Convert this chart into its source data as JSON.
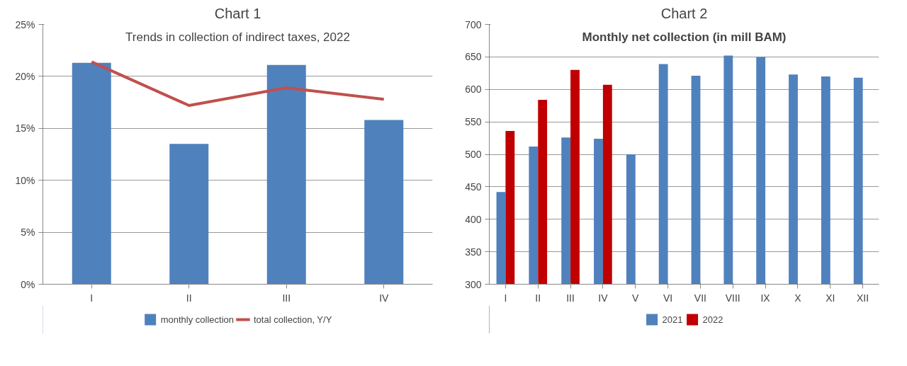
{
  "chart_data": [
    {
      "type": "bar",
      "title": "Chart 1",
      "subtitle": "Trends in collection of indirect taxes, 2022",
      "categories": [
        "I",
        "II",
        "III",
        "IV"
      ],
      "series": [
        {
          "name": "monthly collection",
          "type": "bar",
          "color": "#4f81bd",
          "values": [
            21.3,
            13.5,
            21.1,
            15.8
          ]
        },
        {
          "name": "total collection, Y/Y",
          "type": "line",
          "color": "#c0504d",
          "values": [
            21.4,
            17.2,
            18.9,
            17.8
          ]
        }
      ],
      "ylim": [
        0,
        25
      ],
      "yticks": [
        {
          "value": 0,
          "label": "0%"
        },
        {
          "value": 5,
          "label": "5%"
        },
        {
          "value": 10,
          "label": "10%"
        },
        {
          "value": 15,
          "label": "15%"
        },
        {
          "value": 20,
          "label": "20%"
        },
        {
          "value": 25,
          "label": "25%"
        }
      ],
      "grid": "y",
      "legend": "bottom"
    },
    {
      "type": "bar",
      "title": "Chart 2",
      "subtitle": "Monthly net collection (in mill BAM)",
      "categories": [
        "I",
        "II",
        "III",
        "IV",
        "V",
        "VI",
        "VII",
        "VIII",
        "IX",
        "X",
        "XI",
        "XII"
      ],
      "series": [
        {
          "name": "2021",
          "color": "#4f81bd",
          "values": [
            442,
            512,
            526,
            524,
            500,
            639,
            621,
            652,
            650,
            623,
            620,
            618
          ]
        },
        {
          "name": "2022",
          "color": "#c00000",
          "values": [
            536,
            584,
            630,
            607,
            null,
            null,
            null,
            null,
            null,
            null,
            null,
            null
          ]
        }
      ],
      "ylim": [
        300,
        700
      ],
      "yticks": [
        300,
        350,
        400,
        450,
        500,
        550,
        600,
        650,
        700
      ],
      "grid": "y",
      "legend": "bottom"
    }
  ]
}
